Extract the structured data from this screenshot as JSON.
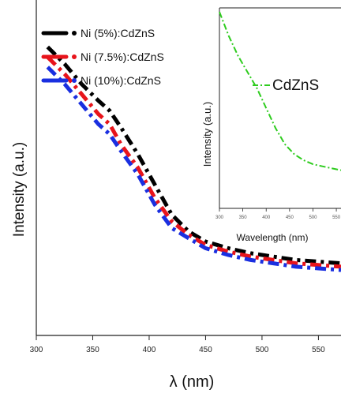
{
  "colors": {
    "background": "#ffffff",
    "axis": "#222222",
    "ni5": "#000000",
    "ni7_5": "#e8141b",
    "ni10": "#1a2fe0",
    "cdzns": "#2ecc1e"
  },
  "chart_data": [
    {
      "type": "line",
      "title": "",
      "xlabel": "λ (nm)",
      "ylabel": "Intensity (a.u.)",
      "xlim": [
        300,
        570
      ],
      "ylim": [
        0,
        1
      ],
      "x_ticks": [
        300,
        350,
        400,
        450,
        500,
        550
      ],
      "y_ticks_labeled": false,
      "grid": false,
      "legend_position": "top-left",
      "series": [
        {
          "name": "Ni (5%):CdZnS",
          "color": "#000000",
          "style": "dash-dot",
          "x": [
            310,
            325,
            340,
            355,
            365,
            375,
            390,
            405,
            420,
            435,
            450,
            470,
            490,
            510,
            530,
            550,
            570
          ],
          "y": [
            0.86,
            0.81,
            0.75,
            0.7,
            0.67,
            0.62,
            0.54,
            0.45,
            0.36,
            0.31,
            0.28,
            0.26,
            0.245,
            0.235,
            0.225,
            0.22,
            0.215
          ]
        },
        {
          "name": "Ni (7.5%):CdZnS",
          "color": "#e8141b",
          "style": "dash-dot",
          "x": [
            310,
            325,
            340,
            355,
            365,
            375,
            390,
            405,
            420,
            435,
            450,
            470,
            490,
            510,
            530,
            550,
            570
          ],
          "y": [
            0.83,
            0.78,
            0.72,
            0.66,
            0.63,
            0.57,
            0.5,
            0.41,
            0.34,
            0.3,
            0.27,
            0.25,
            0.235,
            0.225,
            0.215,
            0.21,
            0.205
          ]
        },
        {
          "name": "Ni (10%):CdZnS",
          "color": "#1a2fe0",
          "style": "dash-dot",
          "x": [
            310,
            325,
            340,
            355,
            365,
            375,
            390,
            405,
            420,
            435,
            450,
            470,
            490,
            510,
            530,
            550,
            570
          ],
          "y": [
            0.8,
            0.75,
            0.69,
            0.63,
            0.6,
            0.55,
            0.48,
            0.39,
            0.32,
            0.29,
            0.26,
            0.24,
            0.225,
            0.215,
            0.205,
            0.2,
            0.195
          ]
        }
      ]
    },
    {
      "type": "line",
      "title": "",
      "xlabel": "Wavelength (nm)",
      "ylabel": "Intensity (a.u.)",
      "xlim": [
        300,
        560
      ],
      "ylim": [
        0,
        1
      ],
      "x_ticks": [
        300,
        350,
        400,
        450,
        500,
        550
      ],
      "legend_position": "top-right",
      "series": [
        {
          "name": "CdZnS",
          "color": "#2ecc1e",
          "style": "dash-dot",
          "x": [
            300,
            320,
            340,
            360,
            380,
            400,
            420,
            440,
            460,
            480,
            500,
            520,
            540,
            560
          ],
          "y": [
            0.98,
            0.86,
            0.76,
            0.68,
            0.6,
            0.5,
            0.4,
            0.32,
            0.27,
            0.24,
            0.22,
            0.21,
            0.2,
            0.19
          ]
        }
      ]
    }
  ]
}
